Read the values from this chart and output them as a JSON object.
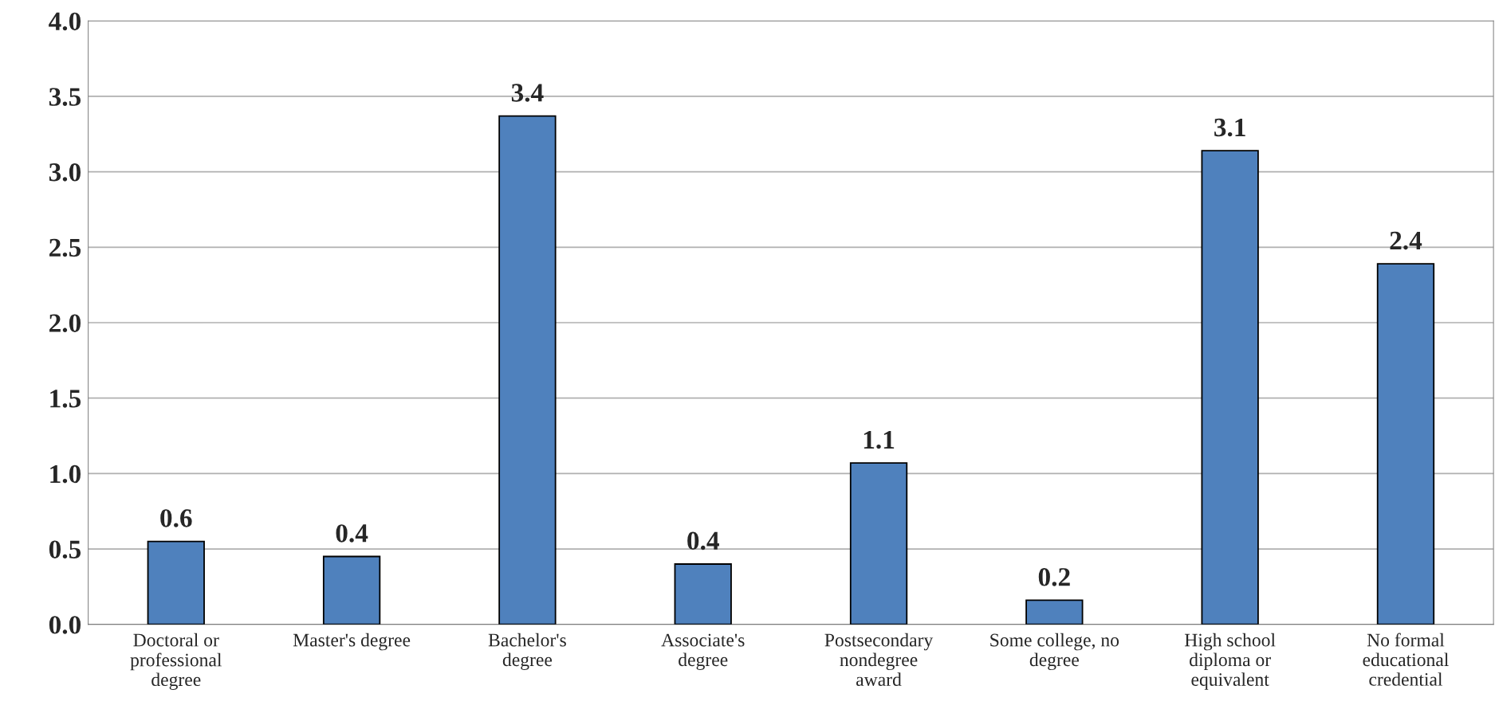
{
  "chart_data": {
    "type": "bar",
    "categories": [
      "Doctoral or\nprofessional\ndegree",
      "Master's degree",
      "Bachelor's\ndegree",
      "Associate's\ndegree",
      "Postsecondary\nnondegree\naward",
      "Some college, no\ndegree",
      "High school\ndiploma or\nequivalent",
      "No formal\neducational\ncredential"
    ],
    "values": [
      0.55,
      0.45,
      3.37,
      0.4,
      1.07,
      0.16,
      3.14,
      2.39
    ],
    "value_labels": [
      "0.6",
      "0.4",
      "3.4",
      "0.4",
      "1.1",
      "0.2",
      "3.1",
      "2.4"
    ],
    "color": "#4f81bd",
    "ylim": [
      0,
      4
    ],
    "yticks": [
      {
        "value": 0,
        "label": "0.0"
      },
      {
        "value": 0.5,
        "label": "0.5"
      },
      {
        "value": 1,
        "label": "1.0"
      },
      {
        "value": 1.5,
        "label": "1.5"
      },
      {
        "value": 2,
        "label": "2.0"
      },
      {
        "value": 2.5,
        "label": "2.5"
      },
      {
        "value": 3,
        "label": "3.0"
      },
      {
        "value": 3.5,
        "label": "3.5"
      },
      {
        "value": 4,
        "label": "4.0"
      }
    ],
    "grid": "y",
    "legend": false
  }
}
